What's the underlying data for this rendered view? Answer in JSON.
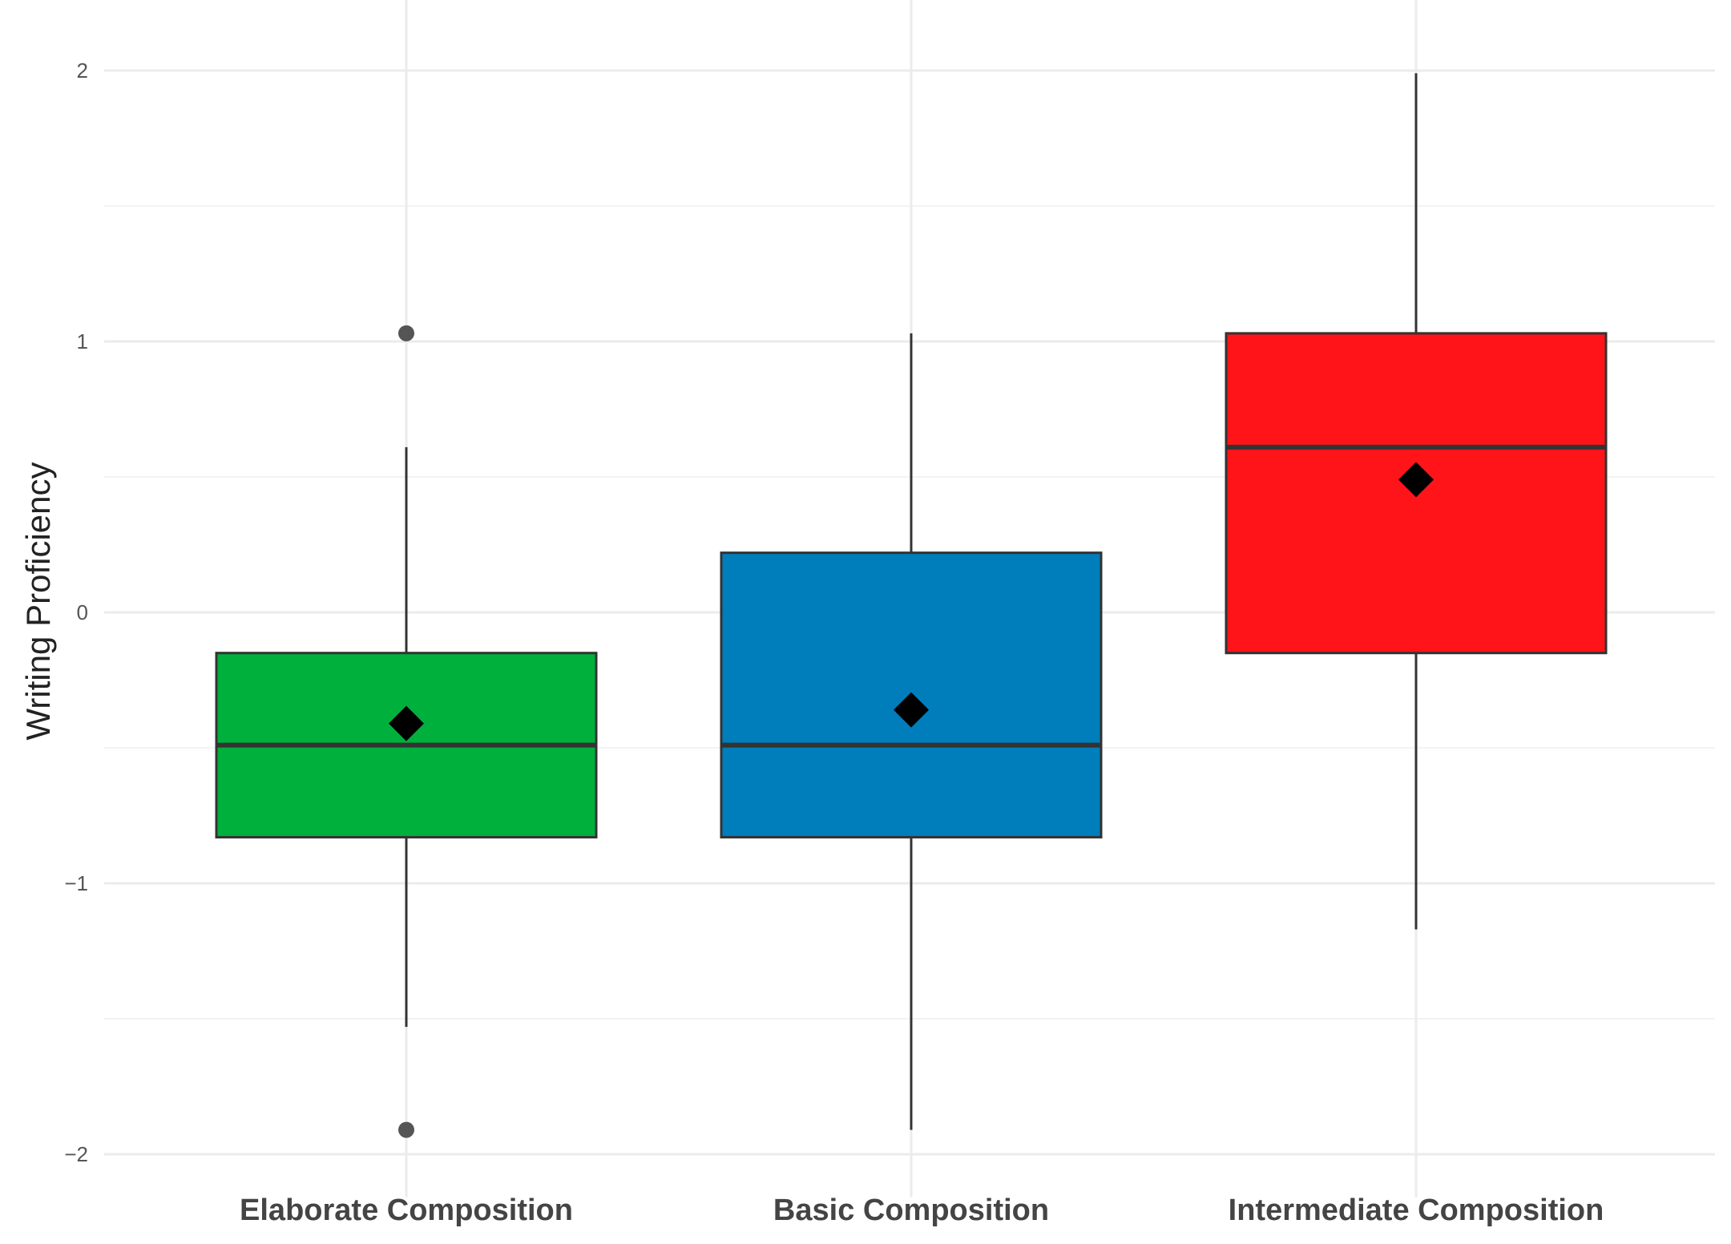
{
  "chart_data": {
    "type": "boxplot",
    "title": "",
    "xlabel": "",
    "ylabel": "Writing Proficiency",
    "ylim": [
      -2.1,
      2.2
    ],
    "yticks": [
      -2,
      -1,
      0,
      1,
      2
    ],
    "ytick_labels": [
      "−2",
      "−1",
      "0",
      "1",
      "2"
    ],
    "grid": true,
    "legend": "none",
    "categories": [
      "Elaborate Composition",
      "Basic Composition",
      "Intermediate Composition"
    ],
    "boxes": [
      {
        "name": "Elaborate Composition",
        "color": "#00b03c",
        "whisker_low": -1.53,
        "q1": -0.83,
        "median": -0.49,
        "q3": -0.15,
        "whisker_high": 0.61,
        "mean": -0.41,
        "outliers": [
          1.03,
          -1.91
        ]
      },
      {
        "name": "Basic Composition",
        "color": "#007dbb",
        "whisker_low": -1.91,
        "q1": -0.83,
        "median": -0.49,
        "q3": 0.22,
        "whisker_high": 1.03,
        "mean": -0.36,
        "outliers": []
      },
      {
        "name": "Intermediate Composition",
        "color": "#ff1419",
        "whisker_low": -1.17,
        "q1": -0.15,
        "median": 0.61,
        "q3": 1.03,
        "whisker_high": 1.99,
        "mean": 0.49,
        "outliers": []
      }
    ]
  }
}
